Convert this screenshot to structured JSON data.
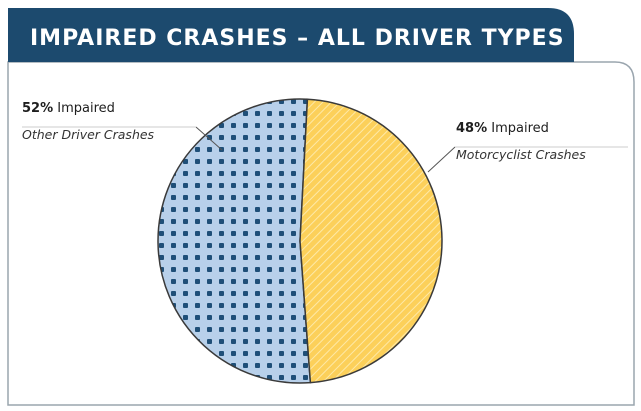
{
  "chart_data": {
    "type": "pie",
    "title": "IMPAIRED CRASHES – ALL DRIVER TYPES",
    "values": [
      52,
      48
    ],
    "value_labels": [
      "52%",
      "48%"
    ],
    "labels": [
      "Impaired",
      "Impaired"
    ],
    "sublabels": [
      "Other Driver Crashes",
      "Motorcyclist Crashes"
    ],
    "colors": [
      "#b8d0ea",
      "#fcd05a"
    ]
  }
}
